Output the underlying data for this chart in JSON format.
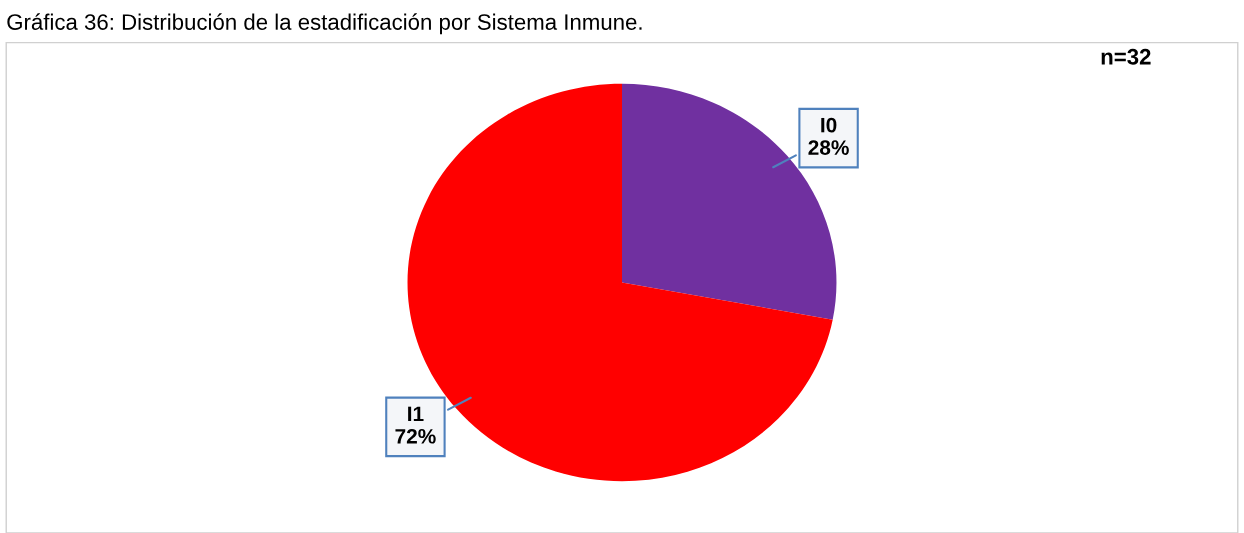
{
  "chart_data": {
    "type": "pie",
    "title": "Gráfica 36: Distribución de la estadificación por Sistema Inmune.",
    "categories": [
      "I0",
      "I1"
    ],
    "values": [
      28,
      72
    ],
    "value_labels": [
      "28%",
      "72%"
    ],
    "colors": [
      "#7030a0",
      "#ff0000"
    ],
    "annotations": [
      "n=32"
    ]
  }
}
